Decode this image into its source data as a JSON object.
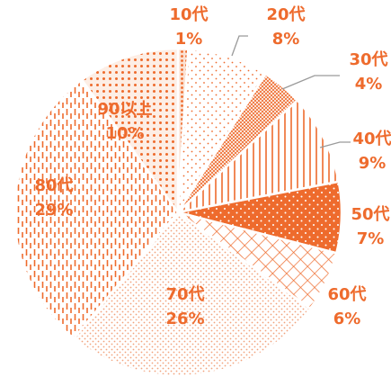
{
  "chart_data": {
    "type": "pie",
    "categories": [
      "10代",
      "20代",
      "30代",
      "40代",
      "50代",
      "60代",
      "70代",
      "80代",
      "90以上"
    ],
    "values": [
      1,
      8,
      4,
      9,
      7,
      6,
      26,
      29,
      10
    ],
    "percent_labels": [
      "1%",
      "8%",
      "4%",
      "9%",
      "7%",
      "6%",
      "26%",
      "29%",
      "10%"
    ],
    "slice_patterns": [
      "dense-dots",
      "sparse-dots",
      "fine-crosshatch",
      "vertical-lines",
      "solid-dots",
      "grid",
      "dots",
      "dashed-vertical",
      "dot-grid"
    ],
    "start_angle_deg": 0,
    "direction": "clockwise",
    "legend": "none",
    "colors": {
      "accent": "#ee6b2d",
      "label": "#ee6b2d",
      "leader": "#9a9a9a",
      "outline": "#ffffff"
    }
  }
}
